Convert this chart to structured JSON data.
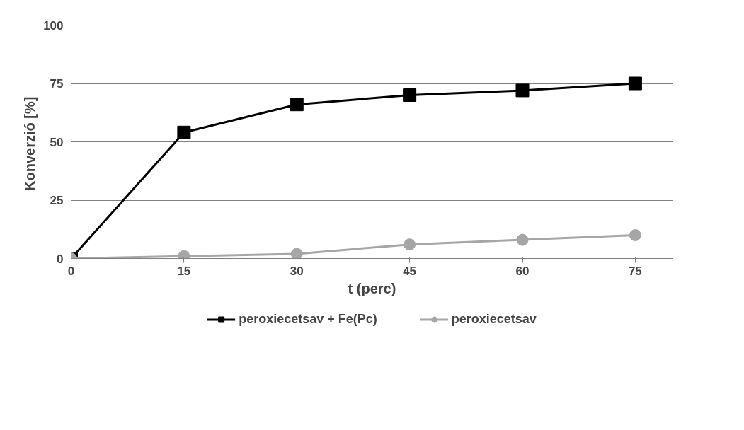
{
  "chart_data": {
    "type": "line",
    "xlabel": "t (perc)",
    "ylabel": "Konverzió  [%]",
    "x": [
      0,
      15,
      30,
      45,
      60,
      75
    ],
    "series": [
      {
        "name": "peroxiecetsav + Fe(Pc)",
        "color": "#000000",
        "marker": "square",
        "values": [
          0,
          54,
          66,
          70,
          72,
          75
        ]
      },
      {
        "name": "peroxiecetsav",
        "color": "#a6a6a6",
        "marker": "circle",
        "values": [
          0,
          1,
          2,
          6,
          8,
          10
        ]
      }
    ],
    "xlim": [
      0,
      80
    ],
    "xticks": [
      0,
      15,
      30,
      45,
      60,
      75
    ],
    "ylim": [
      0,
      100
    ],
    "yticks": [
      0,
      25,
      50,
      75,
      100
    ],
    "grid": "y",
    "legend": "bottom",
    "line_style": "solid"
  }
}
